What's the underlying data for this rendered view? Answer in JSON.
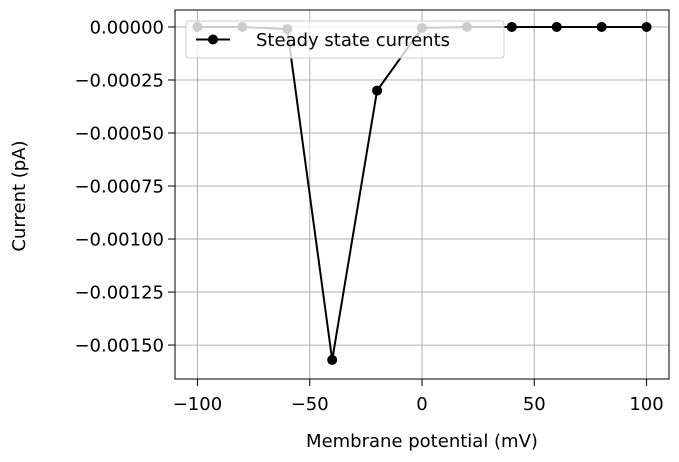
{
  "chart_data": {
    "type": "line",
    "xlabel": "Membrane potential (mV)",
    "ylabel": "Current (pA)",
    "xlim": [
      -110,
      110
    ],
    "ylim": [
      -0.00166,
      8e-05
    ],
    "xticks": [
      -100,
      -50,
      0,
      50,
      100
    ],
    "xtick_labels": [
      "−100",
      "−50",
      "0",
      "50",
      "100"
    ],
    "yticks": [
      0.0,
      -0.00025,
      -0.0005,
      -0.00075,
      -0.001,
      -0.00125,
      -0.0015
    ],
    "ytick_labels": [
      "0.00000",
      "−0.00025",
      "−0.00050",
      "−0.00075",
      "−0.00100",
      "−0.00125",
      "−0.00150"
    ],
    "grid": true,
    "legend_position": "top-left",
    "series": [
      {
        "name": "Steady state currents",
        "color": "#000000",
        "marker": "circle",
        "x": [
          -100,
          -80,
          -60,
          -40,
          -20,
          0,
          20,
          40,
          60,
          80,
          100
        ],
        "y": [
          0.0,
          0.0,
          -1e-05,
          -0.00157,
          -0.0003,
          -5e-06,
          0.0,
          0.0,
          0.0,
          0.0,
          0.0
        ]
      }
    ]
  }
}
